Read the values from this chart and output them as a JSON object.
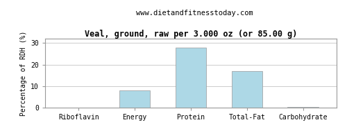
{
  "title": "Veal, ground, raw per 3.000 oz (or 85.00 g)",
  "subtitle": "www.dietandfitnesstoday.com",
  "categories": [
    "Riboflavin",
    "Energy",
    "Protein",
    "Total-Fat",
    "Carbohydrate"
  ],
  "values": [
    0.0,
    8.0,
    28.0,
    17.0,
    0.3
  ],
  "bar_color": "#add8e6",
  "ylabel": "Percentage of RDH (%)",
  "ylim": [
    0,
    32
  ],
  "yticks": [
    0,
    10,
    20,
    30
  ],
  "title_fontsize": 8.5,
  "subtitle_fontsize": 7.5,
  "label_fontsize": 7,
  "tick_fontsize": 7,
  "background_color": "#ffffff",
  "grid_color": "#cccccc",
  "border_color": "#999999"
}
